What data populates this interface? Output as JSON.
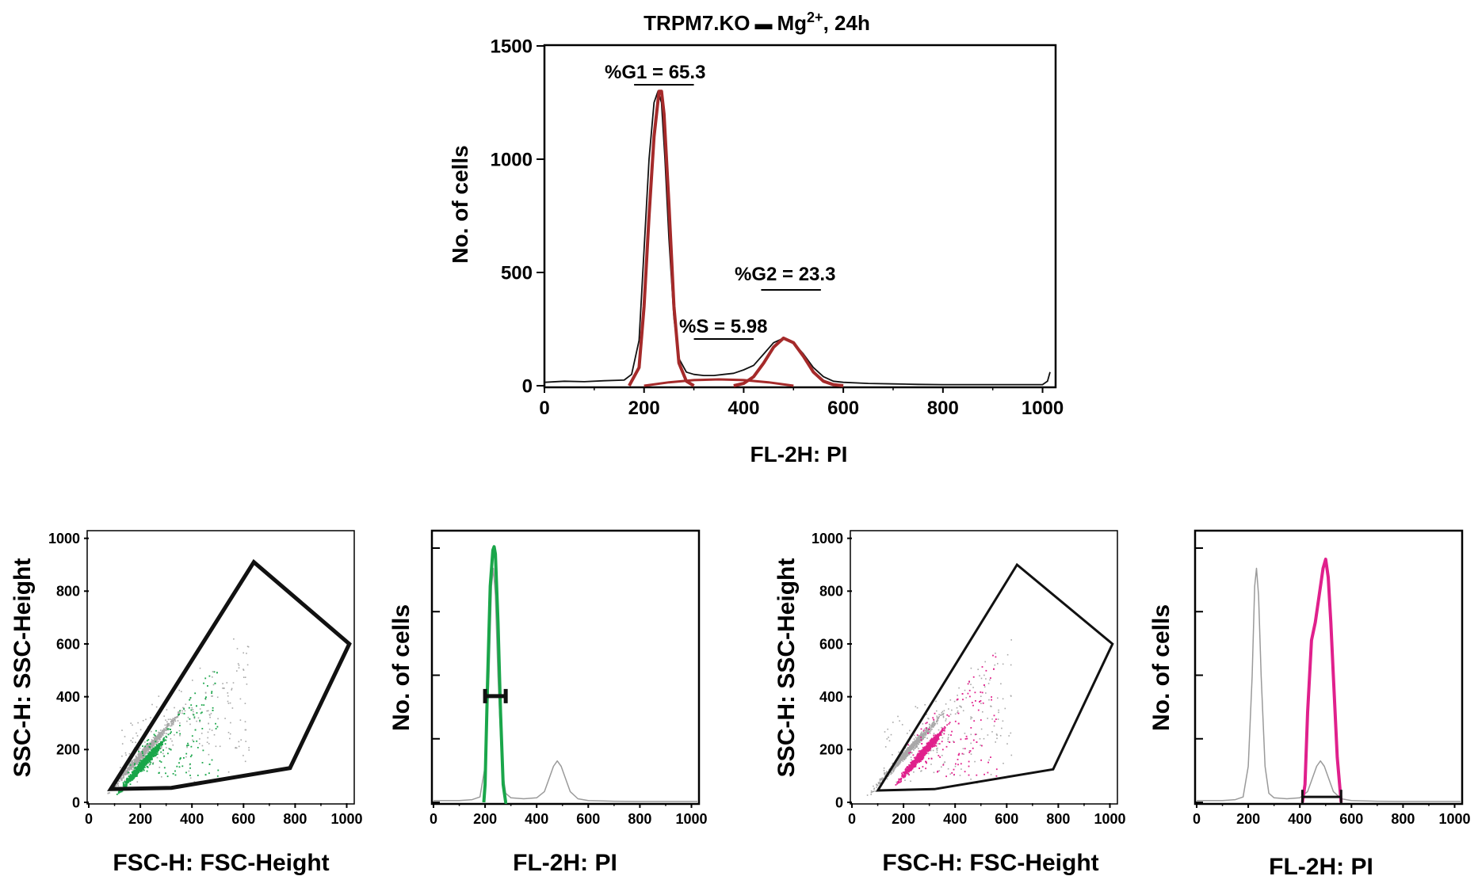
{
  "chart_data": [
    {
      "type": "line",
      "title_main": "TRPM7.KO",
      "title_ion": "Mg",
      "title_sup": "2+",
      "title_time": ", 24h",
      "xlabel": "FL-2H: PI",
      "ylabel": "No. of cells",
      "xlim": [
        0,
        1023
      ],
      "ylim": [
        0,
        1500
      ],
      "xticks": [
        "0",
        "200",
        "400",
        "600",
        "800",
        "1000"
      ],
      "yticks": [
        "0",
        "500",
        "1000",
        "1500"
      ],
      "annotations": {
        "g1": "%G1 = 65.3",
        "s": "%S = 5.98",
        "g2": "%G2 = 23.3"
      },
      "gates": {
        "g1": [
          180,
          300
        ],
        "s": [
          300,
          420
        ],
        "g2": [
          435,
          555
        ]
      },
      "series": [
        {
          "role": "histogram",
          "color": "#111111",
          "x": [
            0,
            40,
            80,
            120,
            160,
            175,
            190,
            200,
            210,
            220,
            228,
            235,
            242,
            250,
            260,
            270,
            285,
            300,
            320,
            340,
            360,
            380,
            400,
            420,
            440,
            460,
            480,
            500,
            520,
            540,
            560,
            580,
            600,
            650,
            700,
            750,
            800,
            850,
            900,
            950,
            1000,
            1010,
            1015
          ],
          "y": [
            15,
            20,
            18,
            22,
            25,
            50,
            200,
            600,
            1000,
            1250,
            1300,
            1250,
            1000,
            650,
            300,
            120,
            60,
            50,
            45,
            45,
            50,
            55,
            70,
            90,
            140,
            190,
            210,
            190,
            140,
            80,
            40,
            20,
            15,
            10,
            8,
            6,
            5,
            5,
            5,
            5,
            5,
            20,
            60
          ]
        },
        {
          "role": "g1-fit",
          "color": "#a52a2a",
          "x": [
            170,
            190,
            200,
            210,
            220,
            230,
            235,
            240,
            250,
            260,
            270,
            285,
            300
          ],
          "y": [
            0,
            80,
            350,
            750,
            1100,
            1300,
            1300,
            1200,
            800,
            350,
            100,
            20,
            0
          ]
        },
        {
          "role": "s-fit",
          "color": "#a52a2a",
          "x": [
            200,
            250,
            300,
            350,
            400,
            450,
            500
          ],
          "y": [
            0,
            15,
            25,
            28,
            25,
            15,
            0
          ]
        },
        {
          "role": "g2-fit",
          "color": "#a52a2a",
          "x": [
            380,
            400,
            420,
            440,
            460,
            480,
            500,
            520,
            540,
            560,
            580,
            600
          ],
          "y": [
            0,
            10,
            40,
            100,
            170,
            210,
            190,
            130,
            60,
            20,
            5,
            0
          ]
        }
      ]
    },
    {
      "type": "scatter",
      "xlabel": "FSC-H: FSC-Height",
      "ylabel": "SSC-H: SSC-Height",
      "xlim": [
        0,
        1023
      ],
      "ylim": [
        0,
        1023
      ],
      "xticks": [
        "0",
        "200",
        "400",
        "600",
        "800",
        "1000"
      ],
      "yticks": [
        "0",
        "200",
        "400",
        "600",
        "800",
        "1000"
      ],
      "highlight_color": "#1aa64a",
      "background_color": "#a8a8a8",
      "gate_polygon": [
        [
          85,
          50
        ],
        [
          320,
          55
        ],
        [
          780,
          130
        ],
        [
          1010,
          600
        ],
        [
          640,
          910
        ],
        [
          85,
          50
        ]
      ]
    },
    {
      "type": "line",
      "xlabel": "FL-2H: PI",
      "ylabel": "No. of cells",
      "xlim": [
        0,
        1023
      ],
      "ylim": [
        0,
        1500
      ],
      "xticks": [
        "0",
        "200",
        "400",
        "600",
        "800",
        "1000"
      ],
      "marker_range": [
        200,
        280
      ],
      "marker_level": 590,
      "series": [
        {
          "role": "all-cells",
          "color": "#9a9a9a",
          "x": [
            0,
            100,
            150,
            180,
            200,
            215,
            225,
            232,
            240,
            250,
            265,
            280,
            300,
            350,
            400,
            430,
            450,
            465,
            480,
            495,
            510,
            530,
            560,
            600,
            700,
            800,
            900,
            1023
          ],
          "y": [
            10,
            10,
            15,
            30,
            200,
            700,
            1200,
            1300,
            1150,
            700,
            200,
            50,
            25,
            20,
            25,
            60,
            140,
            200,
            230,
            200,
            140,
            60,
            20,
            10,
            6,
            5,
            5,
            5
          ]
        },
        {
          "role": "gated",
          "color": "#1aa64a",
          "x": [
            195,
            200,
            210,
            220,
            230,
            235,
            240,
            250,
            260,
            270,
            280,
            285
          ],
          "y": [
            0,
            100,
            700,
            1200,
            1400,
            1420,
            1380,
            1000,
            500,
            100,
            0,
            0
          ]
        }
      ]
    },
    {
      "type": "scatter",
      "xlabel": "FSC-H: FSC-Height",
      "ylabel": "SSC-H: SSC-Height",
      "xlim": [
        0,
        1023
      ],
      "ylim": [
        0,
        1023
      ],
      "xticks": [
        "0",
        "200",
        "400",
        "600",
        "800",
        "1000"
      ],
      "yticks": [
        "0",
        "200",
        "400",
        "600",
        "800",
        "1000"
      ],
      "highlight_color": "#e0208c",
      "background_color": "#a8a8a8",
      "gate_polygon": [
        [
          100,
          45
        ],
        [
          320,
          50
        ],
        [
          780,
          125
        ],
        [
          1010,
          600
        ],
        [
          640,
          900
        ],
        [
          100,
          45
        ]
      ]
    },
    {
      "type": "line",
      "xlabel": "FL-2H: PI",
      "ylabel": "No. of cells",
      "xlim": [
        0,
        1023
      ],
      "ylim": [
        0,
        1500
      ],
      "xticks": [
        "0",
        "200",
        "400",
        "600",
        "800",
        "1000"
      ],
      "marker_range": [
        410,
        560
      ],
      "marker_level": 30,
      "series": [
        {
          "role": "all-cells",
          "color": "#9a9a9a",
          "x": [
            0,
            100,
            150,
            180,
            200,
            215,
            225,
            232,
            240,
            250,
            265,
            280,
            300,
            350,
            400,
            430,
            450,
            465,
            480,
            495,
            510,
            530,
            560,
            600,
            700,
            800,
            900,
            1023
          ],
          "y": [
            10,
            10,
            15,
            30,
            200,
            700,
            1200,
            1300,
            1150,
            700,
            200,
            50,
            25,
            20,
            25,
            60,
            140,
            200,
            230,
            200,
            140,
            60,
            20,
            10,
            6,
            5,
            5,
            5
          ]
        },
        {
          "role": "gated",
          "color": "#e0208c",
          "x": [
            410,
            420,
            430,
            445,
            460,
            475,
            490,
            500,
            510,
            520,
            530,
            545,
            560
          ],
          "y": [
            0,
            100,
            500,
            900,
            1000,
            1150,
            1300,
            1350,
            1250,
            1000,
            700,
            250,
            0
          ]
        }
      ]
    }
  ]
}
